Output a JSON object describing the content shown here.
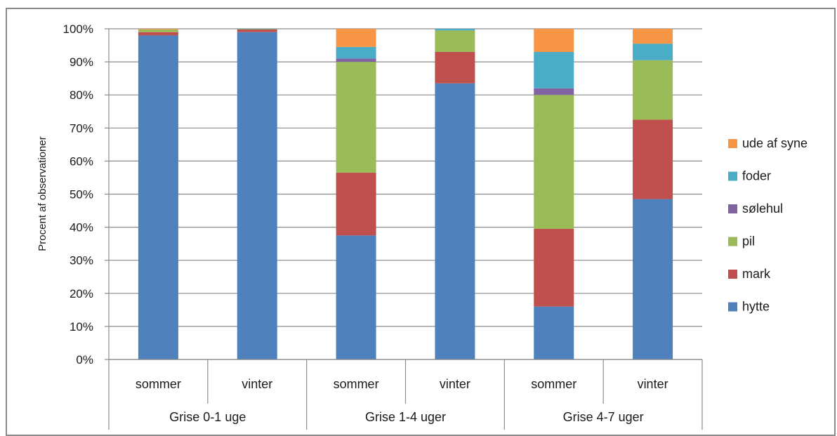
{
  "chart_data": {
    "type": "bar",
    "stacked": true,
    "percent": true,
    "ylabel": "Procent af observationer",
    "ylim": [
      0,
      100
    ],
    "yticks": [
      "0%",
      "10%",
      "20%",
      "30%",
      "40%",
      "50%",
      "60%",
      "70%",
      "80%",
      "90%",
      "100%"
    ],
    "grid": true,
    "legend_position": "right",
    "categories": [
      "sommer",
      "vinter",
      "sommer",
      "vinter",
      "sommer",
      "vinter"
    ],
    "groups": [
      {
        "label": "Grise 0-1 uge",
        "span": 2
      },
      {
        "label": "Grise 1-4 uger",
        "span": 2
      },
      {
        "label": "Grise 4-7 uger",
        "span": 2
      }
    ],
    "series": [
      {
        "name": "hytte",
        "color": "#4f81bd",
        "values": [
          98.0,
          99.0,
          37.5,
          83.5,
          16.0,
          48.5
        ]
      },
      {
        "name": "mark",
        "color": "#c0504d",
        "values": [
          1.0,
          0.8,
          19.0,
          9.5,
          23.5,
          24.0
        ]
      },
      {
        "name": "pil",
        "color": "#9bbb59",
        "values": [
          0.8,
          0.1,
          33.5,
          6.5,
          40.5,
          18.0
        ]
      },
      {
        "name": "sølehul",
        "color": "#8064a2",
        "values": [
          0.0,
          0.0,
          1.0,
          0.0,
          2.0,
          0.0
        ]
      },
      {
        "name": "foder",
        "color": "#4bacc6",
        "values": [
          0.0,
          0.1,
          3.5,
          0.5,
          11.0,
          5.0
        ]
      },
      {
        "name": "ude af syne",
        "color": "#f79646",
        "values": [
          0.2,
          0.0,
          5.5,
          0.0,
          7.0,
          4.5
        ]
      }
    ],
    "legend_order": [
      "ude af syne",
      "foder",
      "sølehul",
      "pil",
      "mark",
      "hytte"
    ]
  }
}
